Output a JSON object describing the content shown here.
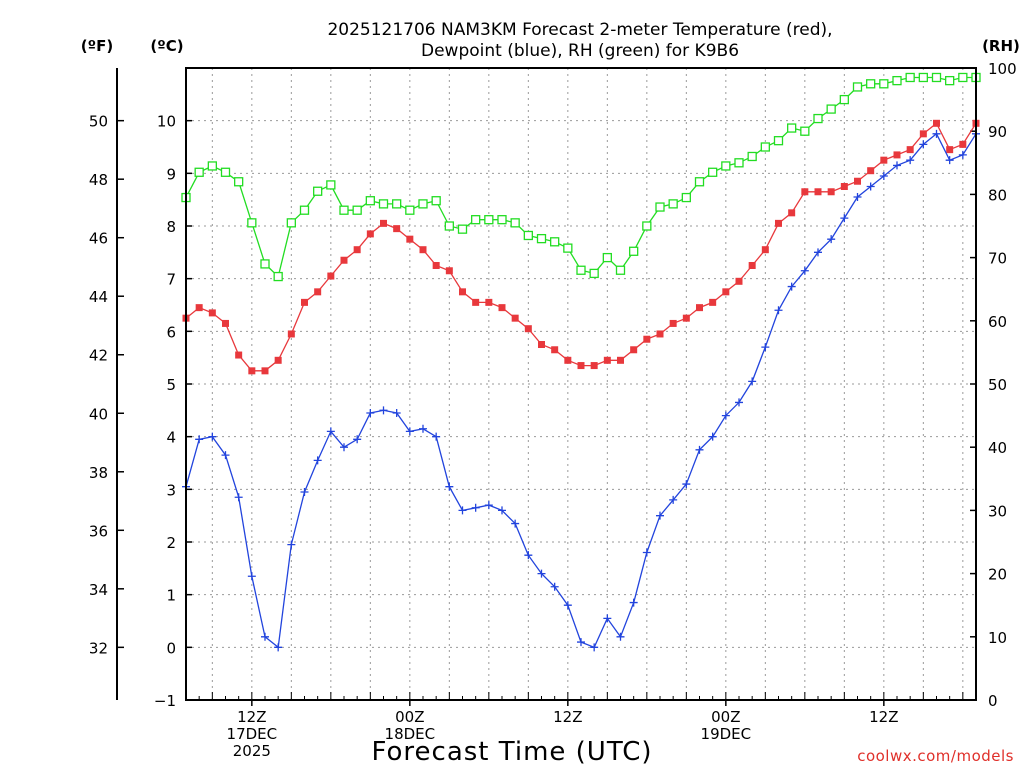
{
  "chart_data": {
    "type": "line",
    "title": "2025121706 NAM3KM Forecast 2-meter Temperature (red),",
    "title2": "Dewpoint (blue), RH (green) for K9B6",
    "xlabel": "Forecast Time (UTC)",
    "credit": "coolwx.com/models",
    "units": {
      "left_f": "(ºF)",
      "left_c": "(ºC)",
      "right": "(RH)"
    },
    "x_start_hour": 7,
    "x_range_hours": [
      7,
      67
    ],
    "x_ticks": [
      {
        "hour": 12,
        "lines": [
          "12Z",
          "17DEC",
          "2025"
        ]
      },
      {
        "hour": 24,
        "lines": [
          "00Z",
          "18DEC"
        ]
      },
      {
        "hour": 36,
        "lines": [
          "12Z"
        ]
      },
      {
        "hour": 48,
        "lines": [
          "00Z",
          "19DEC"
        ]
      },
      {
        "hour": 60,
        "lines": [
          "12Z"
        ]
      }
    ],
    "y_celsius": {
      "range": [
        -1,
        11
      ],
      "ticks": [
        "-1",
        "0",
        "1",
        "2",
        "3",
        "4",
        "5",
        "6",
        "7",
        "8",
        "9",
        "10"
      ]
    },
    "y_fahrenheit": {
      "ticks": [
        "32",
        "34",
        "36",
        "38",
        "40",
        "42",
        "44",
        "46",
        "48",
        "50"
      ]
    },
    "y_rh": {
      "range": [
        0,
        100
      ],
      "ticks": [
        "0",
        "10",
        "20",
        "30",
        "40",
        "50",
        "60",
        "70",
        "80",
        "90",
        "100"
      ]
    },
    "series": [
      {
        "name": "Temperature",
        "axis": "celsius",
        "color": "#e8383c",
        "marker": "filled-square",
        "values": [
          6.25,
          6.45,
          6.35,
          6.15,
          5.55,
          5.25,
          5.25,
          5.45,
          5.95,
          6.55,
          6.75,
          7.05,
          7.35,
          7.55,
          7.85,
          8.05,
          7.95,
          7.75,
          7.55,
          7.25,
          7.15,
          6.75,
          6.55,
          6.55,
          6.45,
          6.25,
          6.05,
          5.75,
          5.65,
          5.45,
          5.35,
          5.35,
          5.45,
          5.45,
          5.65,
          5.85,
          5.95,
          6.15,
          6.25,
          6.45,
          6.55,
          6.75,
          6.95,
          7.25,
          7.55,
          8.05,
          8.25,
          8.65,
          8.65,
          8.65,
          8.75,
          8.85,
          9.05,
          9.25,
          9.35,
          9.45,
          9.75,
          9.95,
          9.45,
          9.55,
          9.95
        ]
      },
      {
        "name": "Dewpoint",
        "axis": "celsius",
        "color": "#2244dd",
        "marker": "plus",
        "values": [
          3.05,
          3.95,
          4.0,
          3.65,
          2.85,
          1.35,
          0.2,
          0.0,
          1.95,
          2.95,
          3.55,
          4.1,
          3.8,
          3.95,
          4.45,
          4.5,
          4.45,
          4.1,
          4.15,
          4.0,
          3.05,
          2.6,
          2.65,
          2.7,
          2.6,
          2.35,
          1.75,
          1.4,
          1.15,
          0.8,
          0.1,
          0.0,
          0.55,
          0.2,
          0.85,
          1.8,
          2.5,
          2.8,
          3.1,
          3.75,
          4.0,
          4.4,
          4.65,
          5.05,
          5.7,
          6.4,
          6.85,
          7.15,
          7.5,
          7.75,
          8.15,
          8.55,
          8.75,
          8.95,
          9.15,
          9.25,
          9.55,
          9.75,
          9.25,
          9.35,
          9.75
        ]
      },
      {
        "name": "RH",
        "axis": "rh",
        "color": "#22dd22",
        "marker": "open-square",
        "values": [
          79.5,
          83.5,
          84.5,
          83.5,
          82.0,
          75.5,
          69.0,
          67.0,
          75.5,
          77.5,
          80.5,
          81.5,
          77.5,
          77.5,
          79.0,
          78.5,
          78.5,
          77.5,
          78.5,
          79.0,
          75.0,
          74.5,
          76.0,
          76.0,
          76.0,
          75.5,
          73.5,
          73.0,
          72.5,
          71.5,
          68.0,
          67.5,
          70.0,
          68.0,
          71.0,
          75.0,
          78.0,
          78.5,
          79.5,
          82.0,
          83.5,
          84.5,
          85.0,
          86.0,
          87.5,
          88.5,
          90.5,
          90.0,
          92.0,
          93.5,
          95.0,
          97.0,
          97.5,
          97.5,
          98.0,
          98.5,
          98.5,
          98.5,
          98.0,
          98.5,
          98.5
        ]
      }
    ]
  }
}
